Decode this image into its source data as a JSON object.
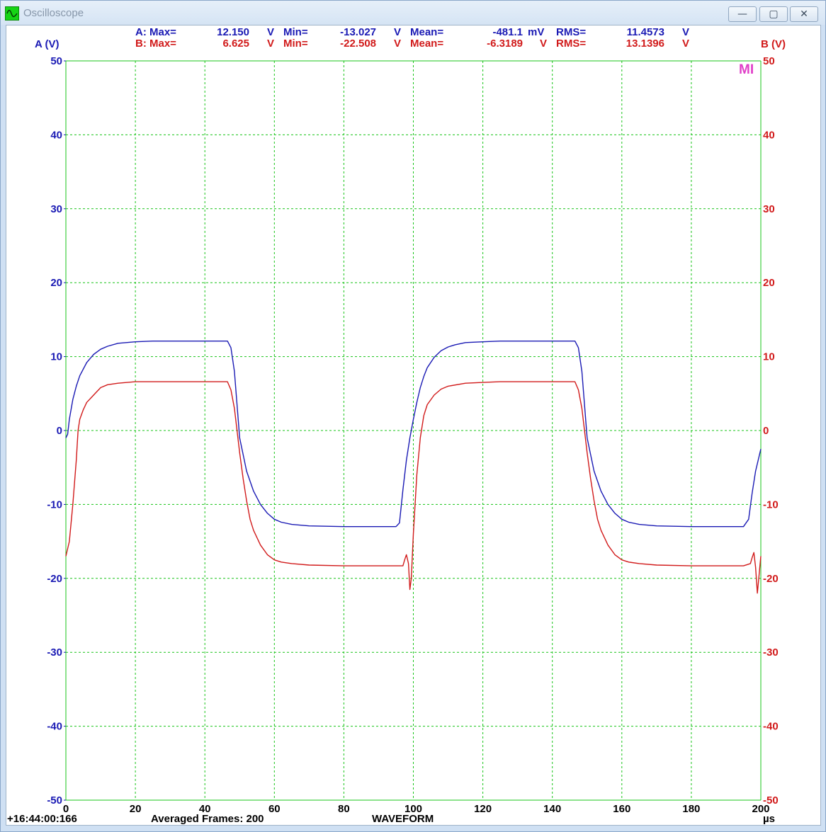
{
  "window": {
    "title": "Oscilloscope"
  },
  "buttons": {
    "minimize": "—",
    "maximize": "▢",
    "close": "✕"
  },
  "colors": {
    "channel_a": "#1a1ab4",
    "channel_b": "#d11a1a",
    "grid": "#18c418",
    "marker": "#e040c8"
  },
  "measurements": {
    "a": {
      "prefix": "A: Max=",
      "max": "12.150",
      "max_unit": "V",
      "min_label": "Min=",
      "min": "-13.027",
      "min_unit": "V",
      "mean_label": "Mean=",
      "mean": "-481.1",
      "mean_unit": "mV",
      "rms_label": "RMS=",
      "rms": "11.4573",
      "rms_unit": "V"
    },
    "b": {
      "prefix": "B: Max=",
      "max": "6.625",
      "max_unit": "V",
      "min_label": "Min=",
      "min": "-22.508",
      "min_unit": "V",
      "mean_label": "Mean=",
      "mean": "-6.3189",
      "mean_unit": "V",
      "rms_label": "RMS=",
      "rms": "13.1396",
      "rms_unit": "V"
    }
  },
  "marker_label": "MI",
  "status": {
    "timestamp": "+16:44:00:166",
    "averaged": "Averaged Frames: 200",
    "mode": "WAVEFORM",
    "x_unit": "µs"
  },
  "chart_data": {
    "type": "line",
    "ylabel_left": "A (V)",
    "ylabel_right": "B (V)",
    "xlim": [
      0,
      200
    ],
    "ylim": [
      -50,
      50
    ],
    "x_ticks": [
      "0",
      "20",
      "40",
      "60",
      "80",
      "100",
      "120",
      "140",
      "160",
      "180",
      "200"
    ],
    "y_ticks": [
      "50",
      "40",
      "30",
      "20",
      "10",
      "0",
      "-10",
      "-20",
      "-30",
      "-40",
      "-50"
    ],
    "grid": true,
    "series": [
      {
        "name": "A",
        "axis": "left",
        "color": "#1a1ab4",
        "x": [
          0,
          0.5,
          1,
          2,
          3,
          4,
          6,
          8,
          10,
          12,
          15,
          20,
          25,
          30,
          35,
          40,
          45,
          46.5,
          47.5,
          48.5,
          50,
          52,
          54,
          56,
          58,
          60,
          62,
          65,
          70,
          80,
          90,
          95,
          96,
          97,
          98,
          99,
          100,
          101,
          102,
          103,
          104,
          106,
          108,
          110,
          112,
          115,
          120,
          125,
          130,
          135,
          140,
          145,
          146.5,
          147.5,
          148.5,
          150,
          152,
          154,
          156,
          158,
          160,
          162,
          165,
          170,
          180,
          190,
          195,
          196.5,
          197.5,
          198.5,
          200
        ],
        "y": [
          -1,
          -0.5,
          1.5,
          4.2,
          6,
          7.4,
          9.2,
          10.3,
          11,
          11.4,
          11.8,
          12,
          12.1,
          12.1,
          12.1,
          12.1,
          12.1,
          12.1,
          11.2,
          8,
          -1,
          -5.5,
          -8.2,
          -10,
          -11.2,
          -12,
          -12.4,
          -12.7,
          -12.9,
          -13,
          -13,
          -13,
          -12.5,
          -8,
          -4,
          -1,
          1.5,
          3.8,
          5.8,
          7.3,
          8.5,
          9.9,
          10.8,
          11.3,
          11.6,
          11.9,
          12,
          12.1,
          12.1,
          12.1,
          12.1,
          12.1,
          12.1,
          11.2,
          8,
          -1,
          -5.5,
          -8.2,
          -10,
          -11.2,
          -12,
          -12.4,
          -12.7,
          -12.9,
          -13,
          -13,
          -13,
          -12,
          -8.5,
          -5.5,
          -2.5
        ]
      },
      {
        "name": "B",
        "axis": "right",
        "color": "#d11a1a",
        "x": [
          0,
          1,
          2,
          3,
          3.5,
          4,
          5,
          6,
          8,
          10,
          12,
          15,
          20,
          25,
          30,
          35,
          40,
          45,
          46.5,
          47.5,
          48.5,
          50,
          51,
          52,
          53,
          54,
          56,
          58,
          60,
          62,
          65,
          70,
          80,
          90,
          95,
          97,
          97.5,
          98,
          98.6,
          99,
          99.4,
          100,
          101,
          102,
          103,
          104,
          106,
          108,
          110,
          115,
          120,
          125,
          130,
          135,
          140,
          145,
          146.5,
          147.5,
          148.5,
          150,
          151,
          152,
          153,
          154,
          156,
          158,
          160,
          162,
          165,
          170,
          180,
          190,
          195,
          197,
          197.5,
          198,
          198.5,
          199,
          199.4,
          200
        ],
        "y": [
          -17,
          -15,
          -10,
          -4,
          0,
          1.5,
          2.8,
          3.8,
          4.8,
          5.8,
          6.2,
          6.4,
          6.6,
          6.6,
          6.6,
          6.6,
          6.6,
          6.6,
          6.6,
          5.5,
          3,
          -3,
          -6.5,
          -9.5,
          -12,
          -13.5,
          -15.5,
          -16.8,
          -17.5,
          -17.8,
          -18,
          -18.2,
          -18.3,
          -18.3,
          -18.3,
          -18.3,
          -17.5,
          -16.8,
          -18,
          -21.5,
          -20,
          -14,
          -6,
          -1,
          2,
          3.5,
          4.8,
          5.6,
          6,
          6.4,
          6.5,
          6.6,
          6.6,
          6.6,
          6.6,
          6.6,
          6.6,
          5.5,
          3,
          -3,
          -6.5,
          -9.5,
          -12,
          -13.5,
          -15.5,
          -16.8,
          -17.5,
          -17.8,
          -18,
          -18.2,
          -18.3,
          -18.3,
          -18.3,
          -18,
          -17.2,
          -16.5,
          -18.5,
          -22,
          -20,
          -17
        ]
      }
    ]
  }
}
